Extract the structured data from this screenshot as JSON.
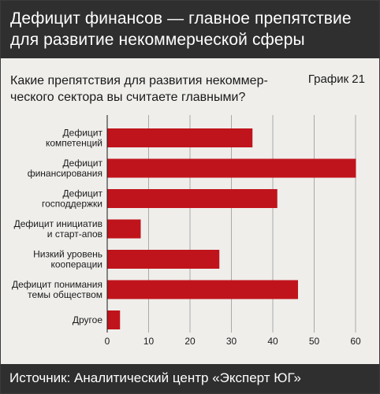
{
  "header": {
    "title_line1": "Дефицит финансов — главное препятствие",
    "title_line2": "для развитие некоммерческой сферы"
  },
  "question": {
    "line1": "Какие препятствия для развития некоммер-",
    "line2": "ческого сектора вы считаете главными?"
  },
  "chart_label": "График 21",
  "source": "Источник: Аналитический центр «Эксперт ЮГ»",
  "colors": {
    "bar": "#c0141c",
    "header_bg": "#2f2f2f",
    "panel_bg": "#efeeeb",
    "grid": "#a9a9a9"
  },
  "chart_data": {
    "type": "bar",
    "orientation": "horizontal",
    "categories": [
      [
        "Дефицит",
        "компетенций"
      ],
      [
        "Дефицит",
        "финансирования"
      ],
      [
        "Дефицит",
        "господдержки"
      ],
      [
        "Дефицит инициатив",
        "и старт-апов"
      ],
      [
        "Низкий уровень",
        "кооперации"
      ],
      [
        "Дефицит понимания",
        "темы обществом"
      ],
      [
        "Другое"
      ]
    ],
    "values": [
      35,
      60,
      41,
      8,
      27,
      46,
      3
    ],
    "xlim": [
      0,
      60
    ],
    "xticks": [
      0,
      10,
      20,
      30,
      40,
      50,
      60
    ],
    "grid": "vertical"
  }
}
